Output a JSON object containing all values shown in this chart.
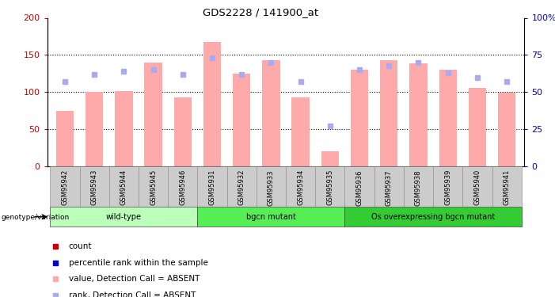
{
  "title": "GDS2228 / 141900_at",
  "samples": [
    "GSM95942",
    "GSM95943",
    "GSM95944",
    "GSM95945",
    "GSM95946",
    "GSM95931",
    "GSM95932",
    "GSM95933",
    "GSM95934",
    "GSM95935",
    "GSM95936",
    "GSM95937",
    "GSM95938",
    "GSM95939",
    "GSM95940",
    "GSM95941"
  ],
  "bar_values": [
    75,
    100,
    101,
    140,
    93,
    168,
    125,
    143,
    93,
    20,
    130,
    143,
    139,
    130,
    106,
    99
  ],
  "rank_values": [
    57,
    62,
    64,
    65,
    62,
    73,
    62,
    70,
    57,
    27,
    65,
    68,
    70,
    63,
    60,
    57
  ],
  "bar_color": "#ffaaaa",
  "rank_color": "#aaaaee",
  "left_ylim": [
    0,
    200
  ],
  "right_ylim": [
    0,
    100
  ],
  "left_yticks": [
    0,
    50,
    100,
    150,
    200
  ],
  "right_yticks": [
    0,
    25,
    50,
    75,
    100
  ],
  "right_yticklabels": [
    "0",
    "25",
    "50",
    "75",
    "100%"
  ],
  "left_ylabel_color": "#cc0000",
  "right_ylabel_color": "#0000cc",
  "groups": [
    {
      "label": "wild-type",
      "start": 0,
      "end": 5,
      "color": "#bbffbb"
    },
    {
      "label": "bgcn mutant",
      "start": 5,
      "end": 10,
      "color": "#55ee55"
    },
    {
      "label": "Os overexpressing bgcn mutant",
      "start": 10,
      "end": 16,
      "color": "#33cc33"
    }
  ],
  "group_row_label": "genotype/variation",
  "legend_items": [
    {
      "label": "count",
      "color": "#cc0000"
    },
    {
      "label": "percentile rank within the sample",
      "color": "#0000cc"
    },
    {
      "label": "value, Detection Call = ABSENT",
      "color": "#ffaaaa"
    },
    {
      "label": "rank, Detection Call = ABSENT",
      "color": "#aaaaee"
    }
  ],
  "tick_label_bg": "#cccccc",
  "bg_color": "#ffffff"
}
